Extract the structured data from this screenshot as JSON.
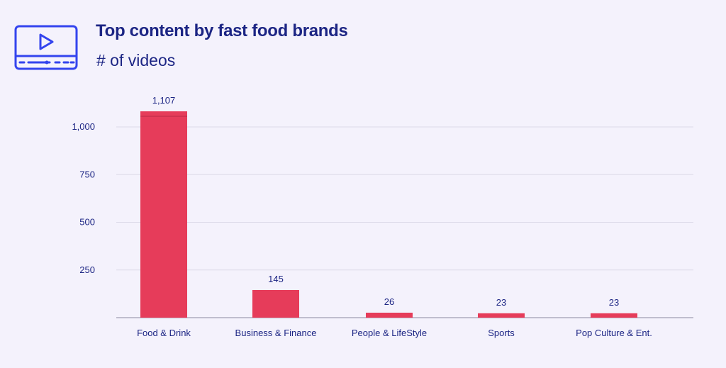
{
  "header": {
    "icon": "video-player-icon",
    "title": "Top content by fast food brands",
    "subtitle": "# of videos"
  },
  "colors": {
    "bar": "#e63c5a",
    "text": "#1c2584",
    "icon": "#3344ee",
    "grid": "#dcdae8",
    "axis": "#8a88a0",
    "background": "#f4f2fc"
  },
  "chart_data": {
    "type": "bar",
    "title": "Top content by fast food brands",
    "subtitle": "# of videos",
    "xlabel": "",
    "ylabel": "",
    "categories": [
      "Food & Drink",
      "Business & Finance",
      "People & LifeStyle",
      "Sports",
      "Pop Culture & Ent."
    ],
    "values": [
      1107,
      145,
      26,
      23,
      23
    ],
    "value_labels": [
      "1,107",
      "145",
      "26",
      "23",
      "23"
    ],
    "yticks": [
      250,
      500,
      750,
      1000
    ],
    "ytick_labels": [
      "250",
      "500",
      "750",
      "1,000"
    ],
    "ylim": [
      0,
      1000
    ],
    "grid": true,
    "broken_axis": true
  }
}
